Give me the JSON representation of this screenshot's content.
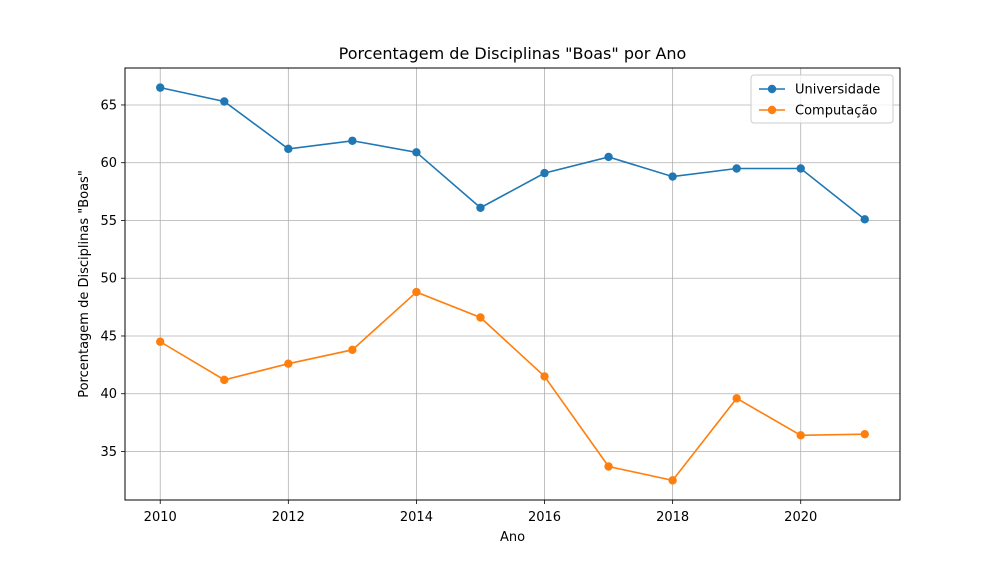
{
  "chart_data": {
    "type": "line",
    "title": "Porcentagem de Disciplinas \"Boas\" por Ano",
    "xlabel": "Ano",
    "ylabel": "Porcentagem de Disciplinas \"Boas\"",
    "x": [
      2010,
      2011,
      2012,
      2013,
      2014,
      2015,
      2016,
      2017,
      2018,
      2019,
      2020,
      2021
    ],
    "series": [
      {
        "name": "Universidade",
        "color": "#1f77b4",
        "values": [
          66.5,
          65.3,
          61.2,
          61.9,
          60.9,
          56.1,
          59.1,
          60.5,
          58.8,
          59.5,
          59.5,
          55.1
        ]
      },
      {
        "name": "Computação",
        "color": "#ff7f0e",
        "values": [
          44.5,
          41.2,
          42.6,
          43.8,
          48.8,
          46.6,
          41.5,
          33.7,
          32.5,
          39.6,
          36.4,
          36.5
        ]
      }
    ],
    "xlim": [
      2009.45,
      2021.55
    ],
    "ylim": [
      30.8,
      68.2
    ],
    "xticks": [
      2010,
      2012,
      2014,
      2016,
      2018,
      2020
    ],
    "yticks": [
      35,
      40,
      45,
      50,
      55,
      60,
      65
    ],
    "grid": true,
    "legend_position": "top-right"
  }
}
